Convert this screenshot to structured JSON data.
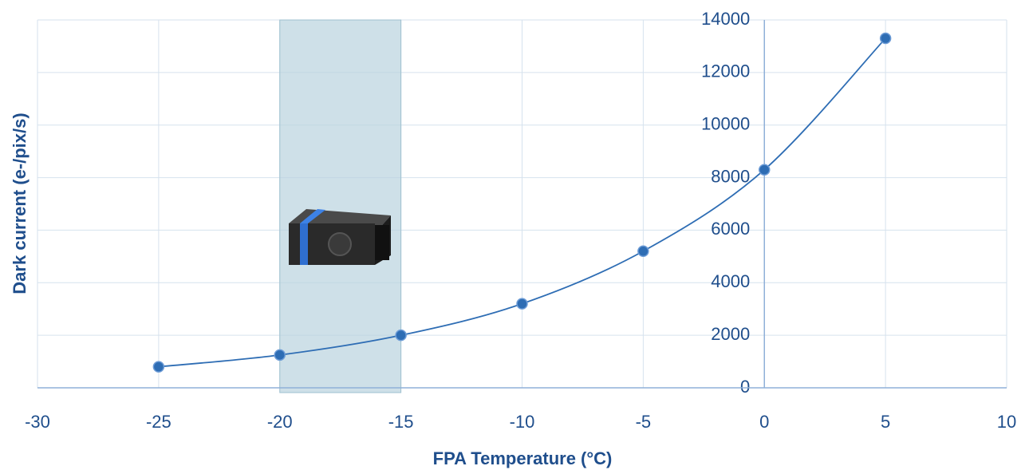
{
  "chart_data": {
    "type": "scatter",
    "x_label": "FPA Temperature (°C)",
    "y_label": "Dark current (e-/pix/s)",
    "x": [
      -25,
      -20,
      -15,
      -10,
      -5,
      0,
      5
    ],
    "series": [
      {
        "color": "#2e6db4",
        "values": [
          800,
          1250,
          2000,
          3200,
          5200,
          8300,
          13300
        ]
      }
    ],
    "xlim": [
      -30,
      10
    ],
    "xticks": [
      -30,
      -25,
      -20,
      -15,
      -10,
      -5,
      0,
      5,
      10
    ],
    "ylim": [
      0,
      14000
    ],
    "yticks": [
      0,
      2000,
      4000,
      6000,
      8000,
      10000,
      12000,
      14000
    ],
    "grid": true,
    "smooth": true,
    "shaded_xrange": [
      -20,
      -15
    ],
    "shade_color": "#b9d3de"
  }
}
